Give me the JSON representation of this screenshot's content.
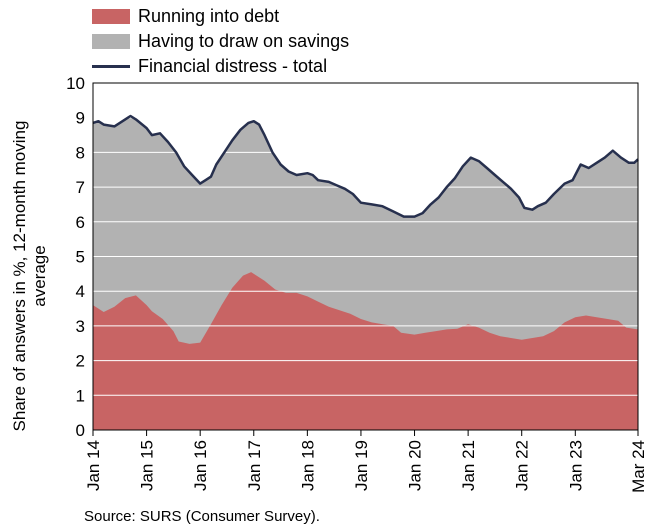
{
  "chart_data": {
    "type": "area",
    "ylabel": "Share of answers in %, 12-month moving average",
    "ylim": [
      0,
      10
    ],
    "yticks": [
      0,
      1,
      2,
      3,
      4,
      5,
      6,
      7,
      8,
      9,
      10
    ],
    "xrange": [
      2014.0,
      2024.17
    ],
    "xticks": [
      {
        "label": "Jan 14",
        "x": 2014.0
      },
      {
        "label": "Jan 15",
        "x": 2015.0
      },
      {
        "label": "Jan 16",
        "x": 2016.0
      },
      {
        "label": "Jan 17",
        "x": 2017.0
      },
      {
        "label": "Jan 18",
        "x": 2018.0
      },
      {
        "label": "Jan 19",
        "x": 2019.0
      },
      {
        "label": "Jan 20",
        "x": 2020.0
      },
      {
        "label": "Jan 21",
        "x": 2021.0
      },
      {
        "label": "Jan 22",
        "x": 2022.0
      },
      {
        "label": "Jan 23",
        "x": 2023.0
      },
      {
        "label": "Mar 24",
        "x": 2024.17
      }
    ],
    "grid": true,
    "legend_placement": "top-left",
    "series": [
      {
        "name": "Running into debt",
        "type": "area",
        "color": "#c86464",
        "points": [
          [
            2014.0,
            3.6
          ],
          [
            2014.2,
            3.4
          ],
          [
            2014.4,
            3.55
          ],
          [
            2014.6,
            3.8
          ],
          [
            2014.8,
            3.88
          ],
          [
            2015.0,
            3.6
          ],
          [
            2015.1,
            3.42
          ],
          [
            2015.3,
            3.2
          ],
          [
            2015.5,
            2.85
          ],
          [
            2015.6,
            2.55
          ],
          [
            2015.8,
            2.48
          ],
          [
            2016.0,
            2.52
          ],
          [
            2016.2,
            3.05
          ],
          [
            2016.4,
            3.6
          ],
          [
            2016.6,
            4.1
          ],
          [
            2016.8,
            4.45
          ],
          [
            2016.95,
            4.55
          ],
          [
            2017.2,
            4.3
          ],
          [
            2017.4,
            4.05
          ],
          [
            2017.6,
            3.95
          ],
          [
            2017.8,
            3.95
          ],
          [
            2018.0,
            3.85
          ],
          [
            2018.2,
            3.7
          ],
          [
            2018.4,
            3.55
          ],
          [
            2018.6,
            3.45
          ],
          [
            2018.8,
            3.35
          ],
          [
            2019.0,
            3.2
          ],
          [
            2019.2,
            3.1
          ],
          [
            2019.4,
            3.05
          ],
          [
            2019.6,
            3.0
          ],
          [
            2019.75,
            2.8
          ],
          [
            2020.0,
            2.75
          ],
          [
            2020.2,
            2.8
          ],
          [
            2020.4,
            2.85
          ],
          [
            2020.6,
            2.9
          ],
          [
            2020.8,
            2.92
          ],
          [
            2021.0,
            3.05
          ],
          [
            2021.2,
            2.95
          ],
          [
            2021.4,
            2.8
          ],
          [
            2021.6,
            2.7
          ],
          [
            2021.8,
            2.65
          ],
          [
            2022.0,
            2.6
          ],
          [
            2022.2,
            2.65
          ],
          [
            2022.4,
            2.7
          ],
          [
            2022.6,
            2.85
          ],
          [
            2022.8,
            3.1
          ],
          [
            2023.0,
            3.25
          ],
          [
            2023.2,
            3.3
          ],
          [
            2023.4,
            3.25
          ],
          [
            2023.6,
            3.2
          ],
          [
            2023.8,
            3.15
          ],
          [
            2023.95,
            2.95
          ],
          [
            2024.17,
            2.9
          ]
        ]
      },
      {
        "name": "Having to draw on savings",
        "type": "area",
        "color": "#b2b2b2"
      },
      {
        "name": "Financial distress - total",
        "type": "line",
        "color": "#27304e",
        "points": [
          [
            2014.0,
            8.85
          ],
          [
            2014.1,
            8.9
          ],
          [
            2014.2,
            8.8
          ],
          [
            2014.4,
            8.75
          ],
          [
            2014.6,
            8.95
          ],
          [
            2014.7,
            9.05
          ],
          [
            2014.8,
            8.95
          ],
          [
            2015.0,
            8.7
          ],
          [
            2015.1,
            8.5
          ],
          [
            2015.25,
            8.55
          ],
          [
            2015.4,
            8.3
          ],
          [
            2015.55,
            8.0
          ],
          [
            2015.7,
            7.6
          ],
          [
            2015.85,
            7.35
          ],
          [
            2016.0,
            7.1
          ],
          [
            2016.1,
            7.2
          ],
          [
            2016.2,
            7.3
          ],
          [
            2016.3,
            7.65
          ],
          [
            2016.45,
            8.0
          ],
          [
            2016.6,
            8.35
          ],
          [
            2016.75,
            8.65
          ],
          [
            2016.9,
            8.85
          ],
          [
            2017.0,
            8.9
          ],
          [
            2017.1,
            8.8
          ],
          [
            2017.2,
            8.5
          ],
          [
            2017.35,
            8.0
          ],
          [
            2017.5,
            7.65
          ],
          [
            2017.65,
            7.45
          ],
          [
            2017.8,
            7.35
          ],
          [
            2018.0,
            7.4
          ],
          [
            2018.1,
            7.35
          ],
          [
            2018.2,
            7.2
          ],
          [
            2018.4,
            7.15
          ],
          [
            2018.55,
            7.05
          ],
          [
            2018.7,
            6.95
          ],
          [
            2018.85,
            6.8
          ],
          [
            2019.0,
            6.55
          ],
          [
            2019.2,
            6.5
          ],
          [
            2019.4,
            6.45
          ],
          [
            2019.6,
            6.3
          ],
          [
            2019.8,
            6.15
          ],
          [
            2020.0,
            6.15
          ],
          [
            2020.15,
            6.25
          ],
          [
            2020.3,
            6.5
          ],
          [
            2020.45,
            6.7
          ],
          [
            2020.6,
            7.0
          ],
          [
            2020.75,
            7.25
          ],
          [
            2020.9,
            7.6
          ],
          [
            2021.05,
            7.85
          ],
          [
            2021.2,
            7.75
          ],
          [
            2021.35,
            7.55
          ],
          [
            2021.5,
            7.35
          ],
          [
            2021.65,
            7.15
          ],
          [
            2021.8,
            6.95
          ],
          [
            2021.95,
            6.7
          ],
          [
            2022.05,
            6.4
          ],
          [
            2022.2,
            6.35
          ],
          [
            2022.3,
            6.45
          ],
          [
            2022.45,
            6.55
          ],
          [
            2022.6,
            6.8
          ],
          [
            2022.8,
            7.1
          ],
          [
            2022.95,
            7.2
          ],
          [
            2023.1,
            7.65
          ],
          [
            2023.25,
            7.55
          ],
          [
            2023.4,
            7.7
          ],
          [
            2023.55,
            7.85
          ],
          [
            2023.7,
            8.05
          ],
          [
            2023.85,
            7.85
          ],
          [
            2024.0,
            7.7
          ],
          [
            2024.1,
            7.7
          ],
          [
            2024.17,
            7.8
          ]
        ]
      }
    ],
    "source": "Source: SURS (Consumer Survey)."
  }
}
